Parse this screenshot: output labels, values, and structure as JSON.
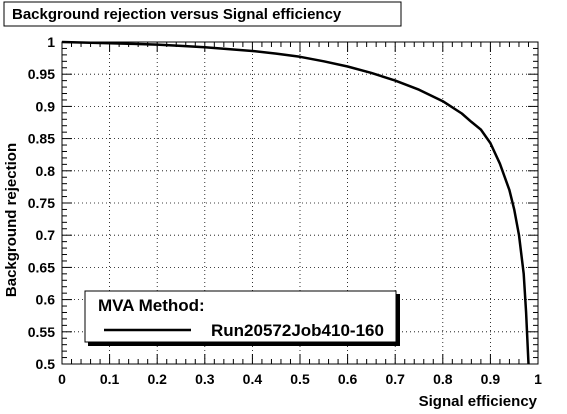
{
  "chart_data": {
    "type": "line",
    "title": "Background rejection versus Signal efficiency",
    "xlabel": "Signal efficiency",
    "ylabel": "Background rejection",
    "xlim": [
      0,
      1
    ],
    "ylim": [
      0.5,
      1
    ],
    "xticks": [
      "0",
      "0.1",
      "0.2",
      "0.3",
      "0.4",
      "0.5",
      "0.6",
      "0.7",
      "0.8",
      "0.9",
      "1"
    ],
    "yticks": [
      "0.5",
      "0.55",
      "0.6",
      "0.65",
      "0.7",
      "0.75",
      "0.8",
      "0.85",
      "0.9",
      "0.95",
      "1"
    ],
    "grid": true,
    "legend": {
      "header": "MVA Method:",
      "placement": "bottom-left"
    },
    "series": [
      {
        "name": "Run20572Job410-160",
        "color": "#000000",
        "x": [
          0.0,
          0.05,
          0.1,
          0.15,
          0.2,
          0.25,
          0.3,
          0.35,
          0.4,
          0.45,
          0.5,
          0.55,
          0.6,
          0.65,
          0.7,
          0.75,
          0.8,
          0.84,
          0.86,
          0.88,
          0.9,
          0.92,
          0.94,
          0.95,
          0.96,
          0.97,
          0.975,
          0.98
        ],
        "y": [
          1.0,
          0.999,
          0.998,
          0.997,
          0.996,
          0.994,
          0.992,
          0.989,
          0.986,
          0.982,
          0.977,
          0.97,
          0.962,
          0.952,
          0.94,
          0.926,
          0.908,
          0.889,
          0.876,
          0.864,
          0.843,
          0.811,
          0.77,
          0.74,
          0.7,
          0.64,
          0.58,
          0.5
        ]
      }
    ]
  }
}
